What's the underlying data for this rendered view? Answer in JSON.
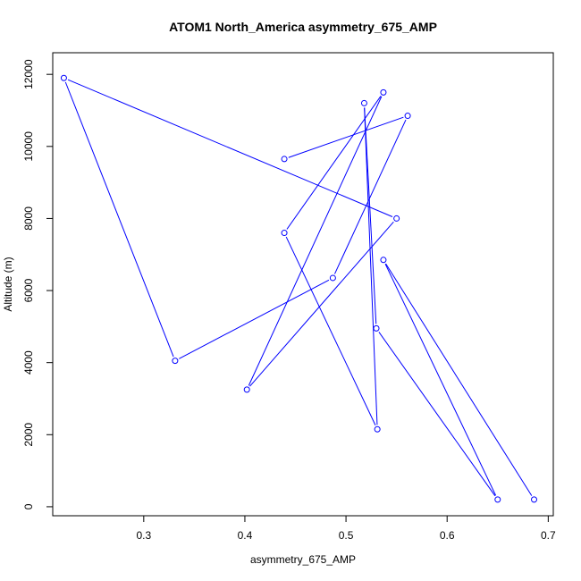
{
  "chart_data": {
    "type": "line",
    "title": "ATOM1 North_America asymmetry_675_AMP",
    "xlabel": "asymmetry_675_AMP",
    "ylabel": "Altitude (m)",
    "xlim": [
      0.21,
      0.705
    ],
    "ylim": [
      -250,
      12600
    ],
    "xticks": [
      0.3,
      0.4,
      0.5,
      0.6,
      0.7
    ],
    "xtick_labels": [
      "0.3",
      "0.4",
      "0.5",
      "0.6",
      "0.7"
    ],
    "yticks": [
      0,
      2000,
      4000,
      6000,
      8000,
      10000,
      12000
    ],
    "ytick_labels": [
      "0",
      "2000",
      "4000",
      "6000",
      "8000",
      "10000",
      "12000"
    ],
    "markers": "open-circle",
    "color": "#0000ff",
    "series": [
      {
        "points": [
          {
            "x": 0.686,
            "y": 200
          },
          {
            "x": 0.537,
            "y": 6850
          },
          {
            "x": 0.65,
            "y": 200
          },
          {
            "x": 0.53,
            "y": 4950
          },
          {
            "x": 0.518,
            "y": 11200
          },
          {
            "x": 0.531,
            "y": 2150
          },
          {
            "x": 0.439,
            "y": 7600
          },
          {
            "x": 0.537,
            "y": 11500
          },
          {
            "x": 0.402,
            "y": 3250
          },
          {
            "x": 0.55,
            "y": 8000
          },
          {
            "x": 0.221,
            "y": 11900
          },
          {
            "x": 0.331,
            "y": 4050
          },
          {
            "x": 0.487,
            "y": 6350
          },
          {
            "x": 0.561,
            "y": 10850
          },
          {
            "x": 0.439,
            "y": 9650
          }
        ]
      }
    ]
  }
}
